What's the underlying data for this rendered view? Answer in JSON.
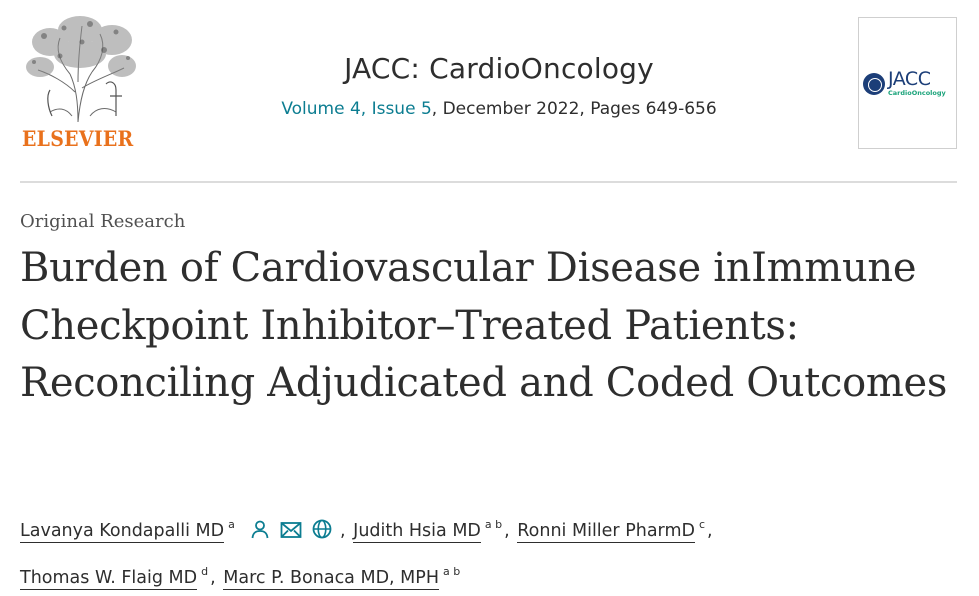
{
  "header": {
    "publisher": "ELSEVIER",
    "journal_title": "JACC: CardioOncology",
    "volume_link": "Volume 4, Issue 5",
    "issue_rest": ", December 2022, Pages 649-656",
    "cover": {
      "brand": "JACC",
      "sub": "CardioOncology"
    },
    "colors": {
      "link": "#0c7d91",
      "publisher": "#e9711c",
      "cover_brand": "#1c3e78",
      "cover_sub": "#1aa37a"
    }
  },
  "article": {
    "type": "Original Research",
    "title": "Burden of Cardiovascular Disease inImmune Checkpoint Inhibitor–Treated Patients: Reconciling Adjudicated and Coded Outcomes"
  },
  "authors": [
    {
      "name": "Lavanya Kondapalli MD",
      "sup": "a",
      "icons": [
        "person-icon",
        "envelope-icon",
        "globe-icon"
      ]
    },
    {
      "name": "Judith Hsia MD",
      "sup": "a b"
    },
    {
      "name": "Ronni Miller PharmD",
      "sup": "c"
    },
    {
      "name": "Thomas W. Flaig MD",
      "sup": "d"
    },
    {
      "name": "Marc P. Bonaca MD, MPH",
      "sup": "a b"
    }
  ],
  "separators": {
    "comma": ","
  }
}
